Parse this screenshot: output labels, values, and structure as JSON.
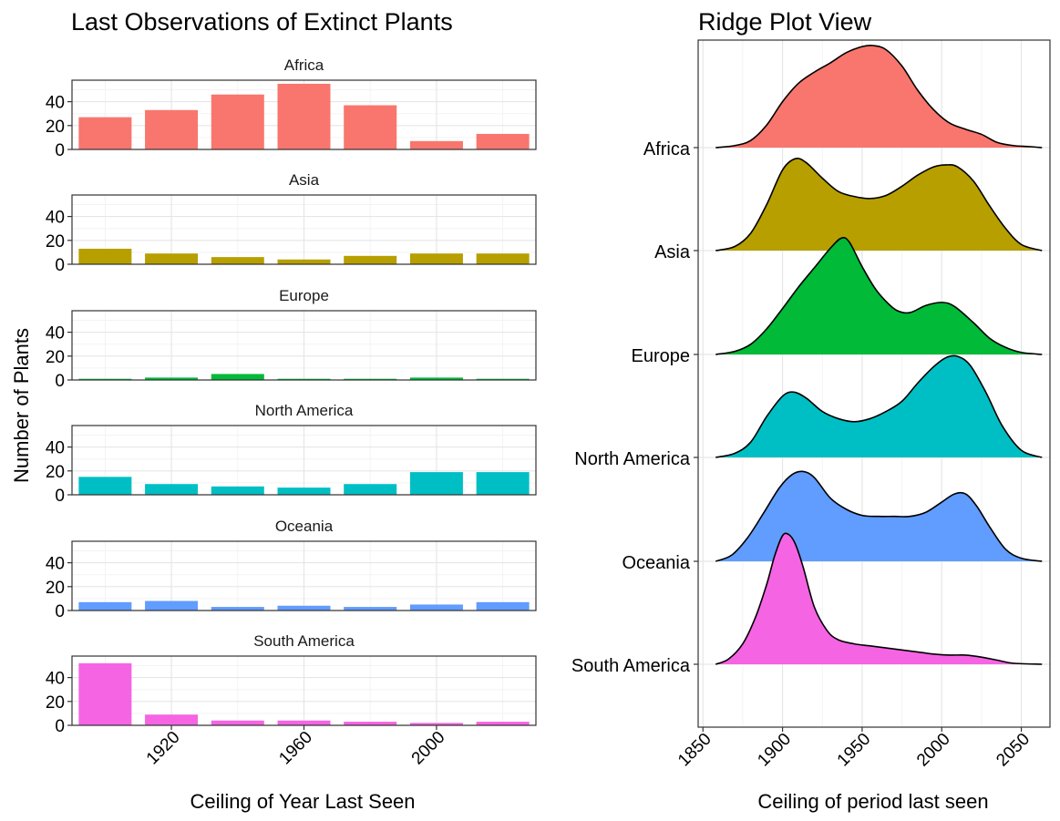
{
  "chart_data": [
    {
      "type": "bar",
      "title": "Last Observations of Extinct Plants",
      "xlabel": "Ceiling of Year Last Seen",
      "ylabel": "Number of Plants",
      "x": [
        1900,
        1920,
        1940,
        1960,
        1980,
        2000,
        2020
      ],
      "x_ticks": [
        "1920",
        "1960",
        "2000"
      ],
      "y_ticks": [
        "0",
        "20",
        "40"
      ],
      "ylim": [
        0,
        58
      ],
      "grid": true,
      "facets": [
        {
          "name": "Africa",
          "color": "#F8766D",
          "values": [
            27,
            33,
            46,
            55,
            37,
            7,
            13
          ]
        },
        {
          "name": "Asia",
          "color": "#B79F00",
          "values": [
            13,
            9,
            6,
            4,
            7,
            9,
            9
          ]
        },
        {
          "name": "Europe",
          "color": "#00BA38",
          "values": [
            1,
            2,
            5,
            1,
            1,
            2,
            1
          ]
        },
        {
          "name": "North America",
          "color": "#00BFC4",
          "values": [
            15,
            9,
            7,
            6,
            9,
            19,
            19
          ]
        },
        {
          "name": "Oceania",
          "color": "#619CFF",
          "values": [
            7,
            8,
            3,
            4,
            3,
            5,
            7
          ]
        },
        {
          "name": "South America",
          "color": "#F564E3",
          "values": [
            52,
            9,
            4,
            4,
            3,
            2,
            3
          ]
        }
      ]
    },
    {
      "type": "area",
      "title": "Ridge Plot View",
      "xlabel": "Ceiling of period last seen",
      "ylabel": "",
      "xlim": [
        1847,
        2068
      ],
      "x_ticks": [
        "1850",
        "1900",
        "1950",
        "2000",
        "2050"
      ],
      "grid": true,
      "ridges": [
        {
          "name": "Africa",
          "color": "#F8766D",
          "points": [
            [
              1858,
              0
            ],
            [
              1870,
              0.02
            ],
            [
              1880,
              0.07
            ],
            [
              1890,
              0.22
            ],
            [
              1900,
              0.45
            ],
            [
              1910,
              0.63
            ],
            [
              1920,
              0.74
            ],
            [
              1930,
              0.83
            ],
            [
              1940,
              0.93
            ],
            [
              1950,
              0.99
            ],
            [
              1957,
              1.0
            ],
            [
              1965,
              0.96
            ],
            [
              1975,
              0.8
            ],
            [
              1985,
              0.56
            ],
            [
              1995,
              0.37
            ],
            [
              2005,
              0.24
            ],
            [
              2015,
              0.18
            ],
            [
              2025,
              0.13
            ],
            [
              2035,
              0.05
            ],
            [
              2045,
              0.02
            ],
            [
              2055,
              0.01
            ],
            [
              2063,
              0.0
            ]
          ]
        },
        {
          "name": "Asia",
          "color": "#B79F00",
          "points": [
            [
              1858,
              0
            ],
            [
              1870,
              0.04
            ],
            [
              1880,
              0.17
            ],
            [
              1890,
              0.45
            ],
            [
              1900,
              0.79
            ],
            [
              1908,
              0.9
            ],
            [
              1915,
              0.86
            ],
            [
              1925,
              0.71
            ],
            [
              1935,
              0.58
            ],
            [
              1945,
              0.53
            ],
            [
              1955,
              0.51
            ],
            [
              1965,
              0.54
            ],
            [
              1975,
              0.63
            ],
            [
              1985,
              0.74
            ],
            [
              1995,
              0.82
            ],
            [
              2003,
              0.84
            ],
            [
              2010,
              0.82
            ],
            [
              2020,
              0.68
            ],
            [
              2030,
              0.44
            ],
            [
              2040,
              0.22
            ],
            [
              2050,
              0.06
            ],
            [
              2063,
              0.0
            ]
          ]
        },
        {
          "name": "Europe",
          "color": "#00BA38",
          "points": [
            [
              1858,
              0
            ],
            [
              1870,
              0.03
            ],
            [
              1880,
              0.1
            ],
            [
              1890,
              0.25
            ],
            [
              1900,
              0.45
            ],
            [
              1910,
              0.66
            ],
            [
              1920,
              0.85
            ],
            [
              1930,
              1.04
            ],
            [
              1937,
              1.14
            ],
            [
              1942,
              1.1
            ],
            [
              1950,
              0.86
            ],
            [
              1958,
              0.65
            ],
            [
              1965,
              0.52
            ],
            [
              1972,
              0.43
            ],
            [
              1980,
              0.41
            ],
            [
              1990,
              0.48
            ],
            [
              2000,
              0.51
            ],
            [
              2008,
              0.47
            ],
            [
              2020,
              0.31
            ],
            [
              2030,
              0.16
            ],
            [
              2040,
              0.07
            ],
            [
              2050,
              0.02
            ],
            [
              2063,
              0.0
            ]
          ]
        },
        {
          "name": "North America",
          "color": "#00BFC4",
          "points": [
            [
              1858,
              0
            ],
            [
              1870,
              0.04
            ],
            [
              1880,
              0.15
            ],
            [
              1890,
              0.4
            ],
            [
              1900,
              0.6
            ],
            [
              1907,
              0.64
            ],
            [
              1915,
              0.58
            ],
            [
              1925,
              0.45
            ],
            [
              1935,
              0.38
            ],
            [
              1945,
              0.35
            ],
            [
              1955,
              0.38
            ],
            [
              1965,
              0.45
            ],
            [
              1975,
              0.55
            ],
            [
              1985,
              0.73
            ],
            [
              1995,
              0.89
            ],
            [
              2003,
              0.98
            ],
            [
              2010,
              0.99
            ],
            [
              2018,
              0.9
            ],
            [
              2028,
              0.63
            ],
            [
              2038,
              0.31
            ],
            [
              2050,
              0.07
            ],
            [
              2063,
              0.0
            ]
          ]
        },
        {
          "name": "Oceania",
          "color": "#619CFF",
          "points": [
            [
              1858,
              0
            ],
            [
              1868,
              0.06
            ],
            [
              1878,
              0.23
            ],
            [
              1888,
              0.47
            ],
            [
              1898,
              0.72
            ],
            [
              1906,
              0.85
            ],
            [
              1913,
              0.88
            ],
            [
              1920,
              0.82
            ],
            [
              1930,
              0.62
            ],
            [
              1940,
              0.51
            ],
            [
              1950,
              0.45
            ],
            [
              1960,
              0.44
            ],
            [
              1970,
              0.44
            ],
            [
              1980,
              0.44
            ],
            [
              1990,
              0.48
            ],
            [
              2000,
              0.58
            ],
            [
              2008,
              0.66
            ],
            [
              2015,
              0.66
            ],
            [
              2022,
              0.54
            ],
            [
              2030,
              0.34
            ],
            [
              2040,
              0.12
            ],
            [
              2050,
              0.03
            ],
            [
              2063,
              0.0
            ]
          ]
        },
        {
          "name": "South America",
          "color": "#F564E3",
          "points": [
            [
              1858,
              0
            ],
            [
              1866,
              0.05
            ],
            [
              1875,
              0.2
            ],
            [
              1883,
              0.46
            ],
            [
              1890,
              0.78
            ],
            [
              1895,
              1.06
            ],
            [
              1900,
              1.26
            ],
            [
              1904,
              1.27
            ],
            [
              1908,
              1.18
            ],
            [
              1913,
              0.95
            ],
            [
              1920,
              0.56
            ],
            [
              1928,
              0.33
            ],
            [
              1935,
              0.24
            ],
            [
              1945,
              0.2
            ],
            [
              1955,
              0.18
            ],
            [
              1965,
              0.16
            ],
            [
              1975,
              0.14
            ],
            [
              1985,
              0.12
            ],
            [
              1995,
              0.1
            ],
            [
              2005,
              0.09
            ],
            [
              2015,
              0.09
            ],
            [
              2025,
              0.07
            ],
            [
              2035,
              0.04
            ],
            [
              2045,
              0.01
            ],
            [
              2063,
              0.0
            ]
          ]
        }
      ]
    }
  ]
}
